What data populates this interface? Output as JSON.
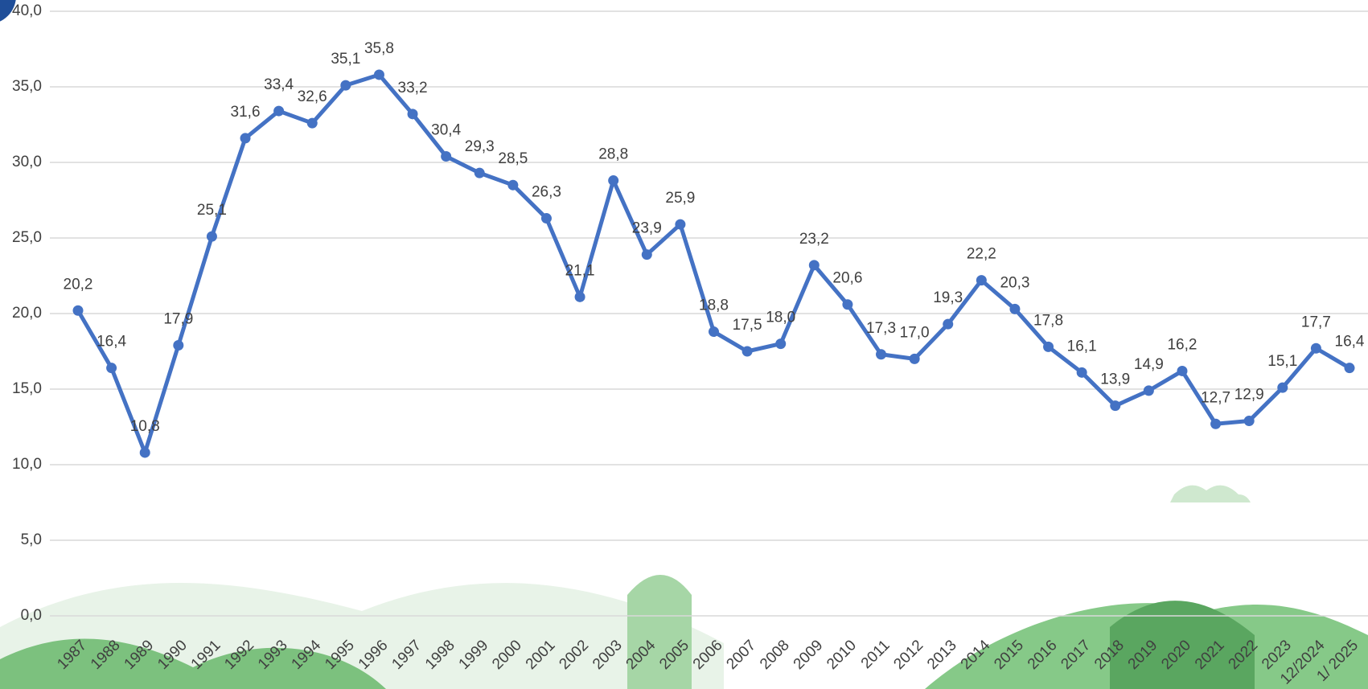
{
  "chart_data": {
    "type": "line",
    "categories": [
      "1987",
      "1988",
      "1989",
      "1990",
      "1991",
      "1992",
      "1993",
      "1994",
      "1995",
      "1996",
      "1997",
      "1998",
      "1999",
      "2000",
      "2001",
      "2002",
      "2003",
      "2004",
      "2005",
      "2006",
      "2007",
      "2008",
      "2009",
      "2010",
      "2011",
      "2012",
      "2013",
      "2014",
      "2015",
      "2016",
      "2017",
      "2018",
      "2019",
      "2020",
      "2021",
      "2022",
      "2023",
      "12/2024",
      "1/ 2025"
    ],
    "series": [
      {
        "color": "#4472c4",
        "values": [
          20.2,
          16.4,
          10.8,
          17.9,
          25.1,
          31.6,
          33.4,
          32.6,
          35.1,
          35.8,
          33.2,
          30.4,
          29.3,
          28.5,
          26.3,
          21.1,
          28.8,
          23.9,
          25.9,
          18.8,
          17.5,
          18.0,
          23.2,
          20.6,
          17.3,
          17.0,
          19.3,
          22.2,
          20.3,
          17.8,
          16.1,
          13.9,
          14.9,
          16.2,
          12.7,
          12.9,
          15.1,
          17.7,
          16.4
        ],
        "value_labels": [
          "20,2",
          "16,4",
          "10,8",
          "17,9",
          "25,1",
          "31,6",
          "33,4",
          "32,6",
          "35,1",
          "35,8",
          "33,2",
          "30,4",
          "29,3",
          "28,5",
          "26,3",
          "21,1",
          "28,8",
          "23,9",
          "25,9",
          "18,8",
          "17,5",
          "18,0",
          "23,2",
          "20,6",
          "17,3",
          "17,0",
          "19,3",
          "22,2",
          "20,3",
          "17,8",
          "16,1",
          "13,9",
          "14,9",
          "16,2",
          "12,7",
          "12,9",
          "15,1",
          "17,7",
          "16,4"
        ]
      }
    ],
    "ylim": [
      0,
      40
    ],
    "yticks": [
      {
        "value": 0,
        "label": "0,0"
      },
      {
        "value": 5,
        "label": "5,0"
      },
      {
        "value": 10,
        "label": "10,0"
      },
      {
        "value": 15,
        "label": "15,0"
      },
      {
        "value": 20,
        "label": "20,0"
      },
      {
        "value": 25,
        "label": "25,0"
      },
      {
        "value": 30,
        "label": "30,0"
      },
      {
        "value": 35,
        "label": "35,0"
      },
      {
        "value": 40,
        "label": "40,0"
      }
    ],
    "grid": true
  }
}
